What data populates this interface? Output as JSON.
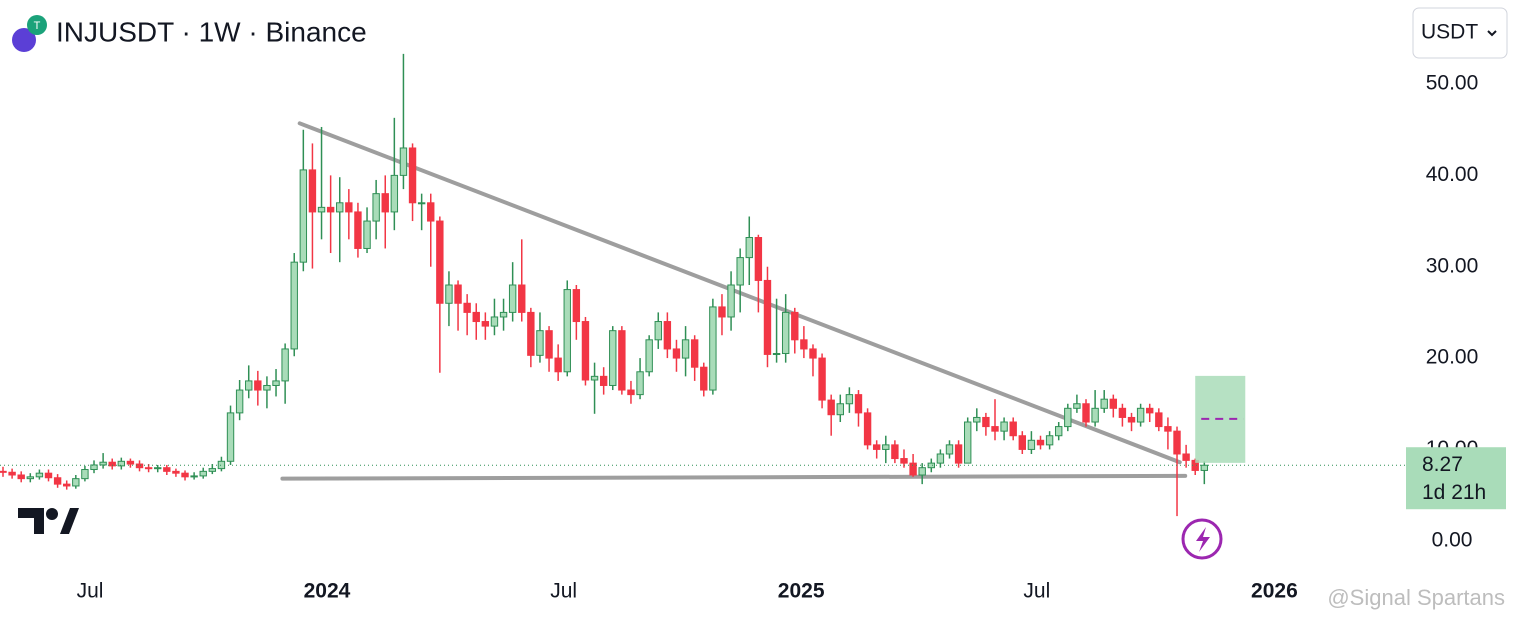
{
  "header": {
    "symbol": "INJUSDT · 1W · Binance",
    "currency_button": "USDT"
  },
  "watermark": "@Signal Spartans",
  "chart_data": {
    "type": "candlestick",
    "up_color": "#a9dcb9",
    "up_border": "#2f8f55",
    "down_color": "#f23645",
    "open": [
      7.6,
      7.5,
      7.2,
      6.8,
      7.0,
      7.4,
      6.9,
      6.2,
      6.0,
      6.8,
      7.8,
      8.3,
      8.6,
      8.2,
      8.7,
      8.4,
      8.0,
      7.9,
      8.0,
      7.6,
      7.4,
      7.0,
      7.1,
      7.6,
      7.9,
      8.7,
      14.0,
      16.5,
      17.5,
      16.5,
      17.0,
      17.5,
      21.0,
      30.5,
      40.6,
      36.0,
      36.5,
      36.0,
      37.0,
      36.0,
      32.0,
      35.0,
      38.0,
      36.0,
      40.0,
      43.0,
      37.0,
      37.0,
      35.0,
      26.0,
      28.0,
      26.0,
      25.0,
      24.0,
      23.5,
      24.5,
      25.0,
      28.0,
      25.0,
      20.3,
      23.0,
      20.0,
      18.5,
      27.5,
      24.0,
      17.6,
      18.0,
      17.0,
      23.0,
      16.5,
      16.0,
      18.5,
      22.0,
      24.0,
      21.0,
      20.0,
      22.0,
      19.0,
      16.5,
      25.6,
      24.5,
      28.0,
      31.0,
      33.2,
      28.5,
      20.4,
      20.5,
      25.0,
      22.0,
      21.0,
      20.0,
      15.4,
      13.8,
      15.0,
      16.0,
      14.0,
      10.5,
      10.0,
      10.5,
      9.0,
      8.5,
      7.2,
      8.0,
      8.5,
      9.5,
      10.5,
      8.5,
      13.0,
      13.5,
      12.5,
      12.0,
      13.0,
      11.5,
      10.0,
      11.0,
      10.5,
      11.5,
      12.5,
      14.5,
      15.0,
      13.0,
      14.5,
      15.5,
      14.5,
      13.5,
      13.0,
      14.5,
      14.0,
      12.5,
      12.0,
      9.5,
      8.8,
      7.7
    ],
    "high": [
      8.1,
      7.9,
      7.6,
      7.4,
      7.8,
      7.8,
      7.3,
      6.6,
      7.2,
      8.2,
      8.8,
      9.6,
      9.0,
      9.1,
      9.0,
      8.8,
      8.4,
      8.3,
      8.3,
      7.9,
      7.7,
      7.5,
      8.0,
      8.4,
      9.2,
      14.8,
      17.6,
      19.2,
      18.6,
      18.0,
      18.8,
      21.6,
      31.5,
      45.0,
      43.5,
      45.3,
      40.0,
      39.8,
      38.5,
      37.0,
      36.5,
      39.5,
      40.0,
      46.3,
      53.3,
      43.5,
      38.0,
      38.0,
      35.5,
      29.5,
      28.5,
      27.0,
      26.0,
      25.0,
      26.5,
      26.5,
      30.5,
      33.0,
      25.5,
      25.0,
      23.5,
      21.5,
      28.5,
      28.0,
      24.5,
      19.5,
      19.0,
      23.5,
      23.5,
      17.5,
      20.0,
      22.5,
      25.0,
      25.0,
      22.0,
      23.5,
      22.5,
      19.5,
      26.5,
      27.0,
      29.5,
      32.0,
      35.5,
      33.5,
      30.0,
      26.5,
      27.0,
      25.5,
      23.5,
      21.5,
      20.5,
      16.0,
      16.0,
      16.8,
      16.5,
      14.5,
      11.0,
      11.5,
      11.0,
      10.0,
      9.5,
      8.5,
      9.0,
      10.0,
      11.0,
      11.0,
      13.5,
      14.5,
      14.0,
      15.5,
      13.5,
      13.5,
      12.0,
      12.0,
      11.5,
      12.0,
      13.0,
      15.0,
      16.0,
      15.5,
      16.5,
      16.5,
      16.0,
      15.0,
      14.0,
      15.0,
      15.0,
      14.5,
      13.5,
      12.5,
      10.5,
      9.0,
      8.7
    ],
    "low": [
      7.0,
      6.8,
      6.4,
      6.4,
      6.7,
      6.5,
      5.8,
      5.6,
      5.7,
      6.5,
      7.4,
      7.9,
      7.8,
      7.8,
      8.0,
      7.6,
      7.5,
      7.5,
      7.2,
      7.0,
      6.6,
      6.7,
      6.8,
      7.3,
      7.6,
      8.3,
      13.2,
      15.6,
      14.8,
      14.5,
      15.8,
      15.0,
      20.2,
      29.5,
      29.8,
      33.0,
      31.5,
      30.5,
      33.0,
      31.0,
      31.5,
      33.0,
      32.0,
      34.0,
      38.5,
      35.0,
      34.0,
      30.0,
      18.4,
      23.5,
      23.0,
      22.5,
      22.0,
      22.0,
      22.5,
      23.0,
      24.0,
      24.0,
      19.0,
      19.5,
      18.5,
      17.5,
      18.0,
      22.0,
      17.0,
      13.9,
      16.0,
      16.5,
      16.0,
      15.0,
      15.5,
      18.0,
      21.0,
      20.0,
      18.5,
      18.0,
      17.5,
      15.8,
      16.0,
      22.5,
      23.0,
      25.0,
      28.0,
      25.0,
      19.0,
      19.5,
      19.5,
      20.5,
      20.0,
      18.0,
      14.5,
      11.5,
      13.0,
      14.0,
      12.5,
      10.0,
      9.0,
      8.5,
      8.5,
      8.0,
      7.0,
      6.2,
      7.5,
      8.0,
      9.0,
      8.0,
      8.5,
      12.0,
      11.5,
      11.0,
      11.0,
      11.0,
      9.5,
      9.5,
      10.0,
      10.0,
      11.0,
      12.0,
      14.0,
      12.5,
      12.5,
      14.0,
      13.5,
      12.5,
      12.0,
      12.5,
      13.0,
      12.0,
      10.0,
      2.7,
      8.0,
      7.2,
      6.2
    ],
    "close": [
      7.5,
      7.2,
      6.8,
      7.0,
      7.4,
      6.9,
      6.2,
      6.0,
      6.8,
      7.8,
      8.3,
      8.6,
      8.2,
      8.7,
      8.4,
      8.0,
      7.9,
      8.0,
      7.6,
      7.4,
      7.0,
      7.1,
      7.6,
      7.9,
      8.7,
      14.0,
      16.5,
      17.5,
      16.5,
      17.0,
      17.5,
      21.0,
      30.5,
      40.6,
      36.0,
      36.5,
      36.0,
      37.0,
      36.0,
      32.0,
      35.0,
      38.0,
      36.0,
      40.0,
      43.0,
      37.0,
      37.0,
      35.0,
      26.0,
      28.0,
      26.0,
      25.0,
      24.0,
      23.5,
      24.5,
      25.0,
      28.0,
      25.0,
      20.3,
      23.0,
      20.0,
      18.5,
      27.5,
      24.0,
      17.6,
      18.0,
      17.0,
      23.0,
      16.5,
      16.0,
      18.5,
      22.0,
      24.0,
      21.0,
      20.0,
      22.0,
      19.0,
      16.5,
      25.6,
      24.5,
      28.0,
      31.0,
      33.2,
      28.5,
      20.4,
      20.5,
      25.0,
      22.0,
      21.0,
      20.0,
      15.4,
      13.8,
      15.0,
      16.0,
      14.0,
      10.5,
      10.0,
      10.5,
      9.0,
      8.5,
      7.2,
      8.0,
      8.5,
      9.5,
      10.5,
      8.5,
      13.0,
      13.5,
      12.5,
      12.0,
      13.0,
      11.5,
      10.0,
      11.0,
      10.5,
      11.5,
      12.5,
      14.5,
      15.0,
      13.0,
      14.5,
      15.5,
      14.5,
      13.5,
      13.0,
      14.5,
      14.0,
      12.5,
      12.0,
      9.5,
      8.8,
      7.7,
      8.27
    ],
    "countdown": "1d 21h",
    "xlim": [
      -0.33,
      154.6
    ],
    "xticks": [
      {
        "value": 9.56,
        "label": "Jul"
      },
      {
        "value": 35.6,
        "label": "2024"
      },
      {
        "value": 61.6,
        "label": "Jul"
      },
      {
        "value": 87.7,
        "label": "2025"
      },
      {
        "value": 113.6,
        "label": "Jul"
      },
      {
        "value": 139.7,
        "label": "2026"
      }
    ],
    "ylim": [
      -3.2,
      59.2
    ],
    "yticks": [
      {
        "value": 0,
        "label": "0.00"
      },
      {
        "value": 10,
        "label": "10.00"
      },
      {
        "value": 20,
        "label": "20.00"
      },
      {
        "value": 30,
        "label": "30.00"
      },
      {
        "value": 40,
        "label": "40.00"
      },
      {
        "value": 50,
        "label": "50.00"
      }
    ],
    "grid": false,
    "trendlines": [
      {
        "from": {
          "index": 32.6,
          "price": 45.7
        },
        "to": {
          "index": 129.3,
          "price": 8.6
        },
        "color": "#9e9e9e"
      },
      {
        "from": {
          "index": 30.7,
          "price": 6.8
        },
        "to": {
          "index": 129.9,
          "price": 7.1
        },
        "color": "#9e9e9e"
      }
    ],
    "target_box": {
      "from_index": 131,
      "to_index": 136.5,
      "top": 18.05,
      "bottom": 8.53,
      "mid": 13.35,
      "color": "#a9dcb9",
      "mid_color": "#9c27b0"
    }
  }
}
